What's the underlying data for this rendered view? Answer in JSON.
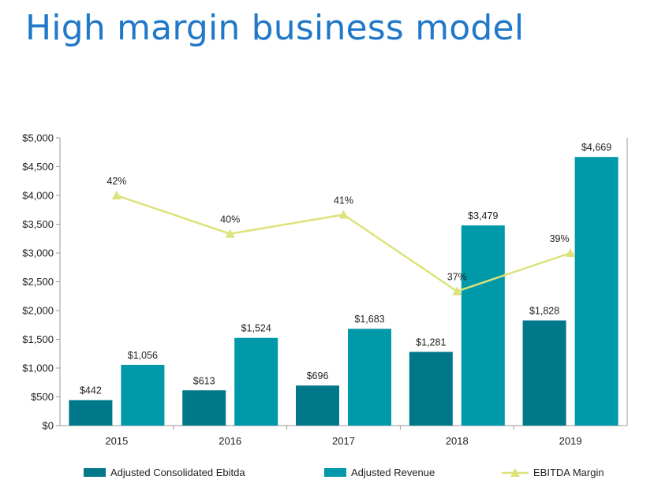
{
  "page": {
    "title": "High margin business model"
  },
  "colors": {
    "title": "#1f78c9",
    "ebitda": "#00788a",
    "revenue": "#0099a9",
    "margin": "#dde27a",
    "axis": "#9a9a9a"
  },
  "chart_data": {
    "type": "bar",
    "title": "",
    "xlabel": "",
    "ylabel": "",
    "categories": [
      "2015",
      "2016",
      "2017",
      "2018",
      "2019"
    ],
    "ylim": [
      0,
      5000
    ],
    "yticks": [
      "$0",
      "$500",
      "$1,000",
      "$1,500",
      "$2,000",
      "$2,500",
      "$3,000",
      "$3,500",
      "$4,000",
      "$4,500",
      "$5,000"
    ],
    "grid": false,
    "legend_position": "bottom",
    "series": [
      {
        "name": "Adjusted Consolidated Ebitda",
        "type": "bar",
        "values": [
          442,
          613,
          696,
          1281,
          1828
        ],
        "labels": [
          "$442",
          "$613",
          "$696",
          "$1,281",
          "$1,828"
        ]
      },
      {
        "name": "Adjusted Revenue",
        "type": "bar",
        "values": [
          1056,
          1524,
          1683,
          3479,
          4669
        ],
        "labels": [
          "$1,056",
          "$1,524",
          "$1,683",
          "$3,479",
          "$4,669"
        ]
      },
      {
        "name": "EBITDA Margin",
        "type": "line",
        "marker": "triangle",
        "values": [
          42,
          40,
          41,
          37,
          39
        ],
        "labels": [
          "42%",
          "40%",
          "41%",
          "37%",
          "39%"
        ]
      }
    ]
  }
}
